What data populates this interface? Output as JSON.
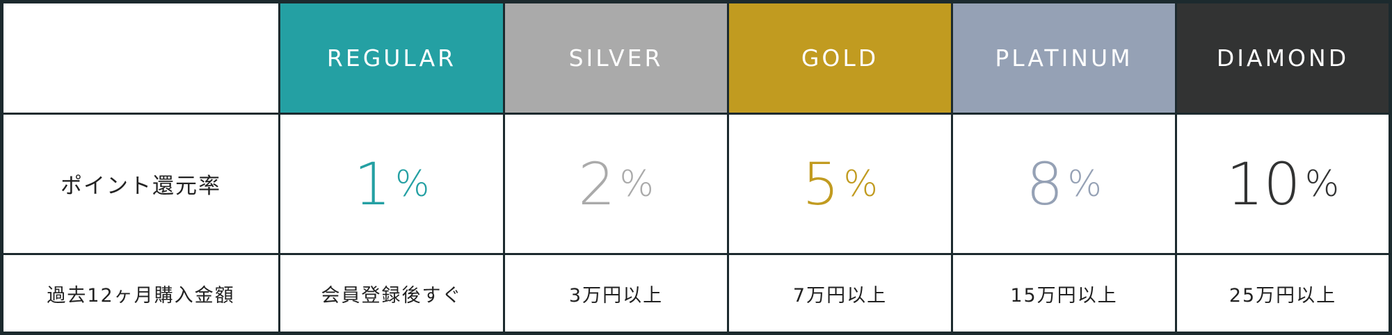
{
  "tiers": [
    {
      "name": "REGULAR",
      "color": "#24a0a3",
      "rate": "1",
      "requirement": "会員登録後すぐ"
    },
    {
      "name": "SILVER",
      "color": "#aaaaaa",
      "rate": "2",
      "requirement": "3万円以上"
    },
    {
      "name": "GOLD",
      "color": "#c19b20",
      "rate": "5",
      "requirement": "7万円以上"
    },
    {
      "name": "PLATINUM",
      "color": "#95a1b5",
      "rate": "8",
      "requirement": "15万円以上"
    },
    {
      "name": "DIAMOND",
      "color": "#323333",
      "rate": "10",
      "requirement": "25万円以上"
    }
  ],
  "percent_sign": "%",
  "rows": {
    "rate_label": "ポイント還元率",
    "requirement_label": "過去12ヶ月購入金額"
  }
}
